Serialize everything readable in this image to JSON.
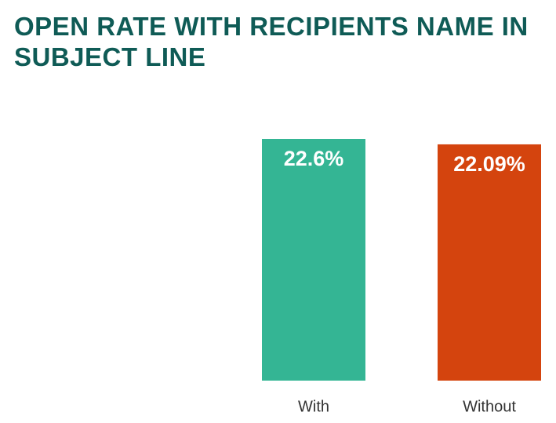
{
  "chart_data": {
    "type": "bar",
    "title": "OPEN RATE WITH RECIPIENTS NAME IN SUBJECT LINE",
    "categories": [
      "With",
      "Without"
    ],
    "values": [
      22.6,
      22.09
    ],
    "value_labels": [
      "22.6%",
      "22.09%"
    ],
    "colors": [
      "#34b594",
      "#d4440e"
    ]
  }
}
